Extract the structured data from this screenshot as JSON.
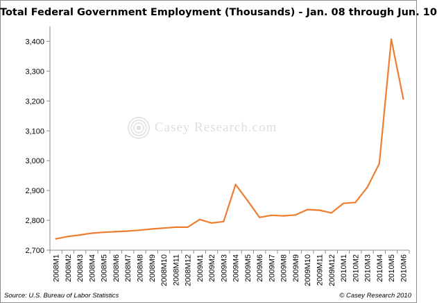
{
  "chart_data": {
    "type": "line",
    "title": "Total Federal Government Employment (Thousands)  - Jan. 08 through Jun. 10",
    "xlabel": "",
    "ylabel": "",
    "ylim": [
      2700,
      3450
    ],
    "yticks": [
      "2,700",
      "2,800",
      "2,900",
      "3,000",
      "3,100",
      "3,200",
      "3,300",
      "3,400"
    ],
    "y_tick_values": [
      2700,
      2800,
      2900,
      3000,
      3100,
      3200,
      3300,
      3400
    ],
    "grid": false,
    "line_color": "#ed7d31",
    "categories": [
      "2008M1",
      "2008M2",
      "2008M3",
      "2008M4",
      "2008M5",
      "2008M6",
      "2008M7",
      "2008M8",
      "2008M9",
      "2008M10",
      "2008M11",
      "2008M12",
      "2009M1",
      "2009M2",
      "2009M3",
      "2009M4",
      "2009M5",
      "2009M6",
      "2009M7",
      "2009M8",
      "2009M9",
      "2009M10",
      "2009M11",
      "2009M12",
      "2010M1",
      "2010M2",
      "2010M3",
      "2010M4",
      "2010M5",
      "2010M6"
    ],
    "series": [
      {
        "values": [
          2738,
          2746,
          2751,
          2757,
          2760,
          2762,
          2764,
          2767,
          2771,
          2774,
          2777,
          2777,
          2803,
          2791,
          2796,
          2920,
          2866,
          2810,
          2817,
          2815,
          2818,
          2836,
          2834,
          2825,
          2857,
          2860,
          2911,
          2990,
          3407,
          3207
        ]
      }
    ]
  },
  "watermark": {
    "text": "Casey Research.com",
    "color": "#9a9a9a"
  },
  "footer": {
    "source": "Source: U.S. Bureau of Labor Statistics",
    "copyright": "© Casey Research 2010"
  }
}
